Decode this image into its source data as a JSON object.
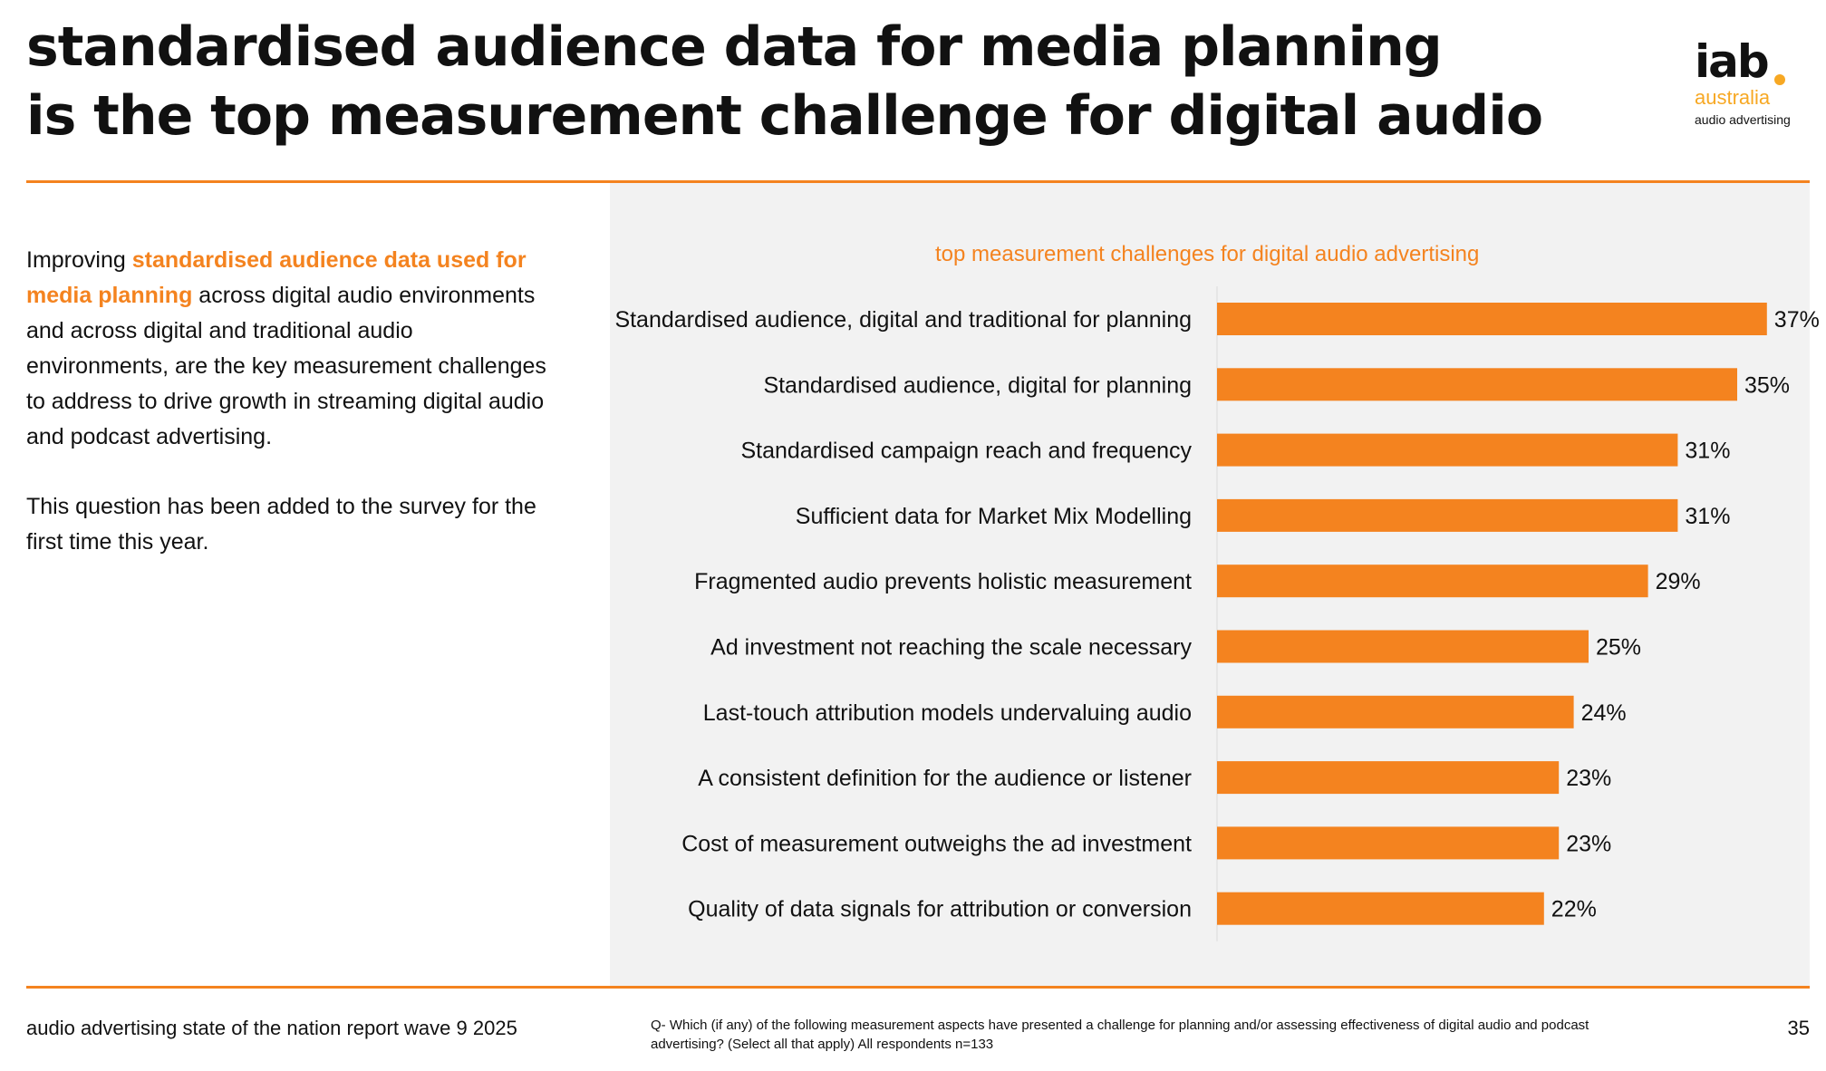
{
  "header": {
    "title_line1": "standardised audience data for media planning",
    "title_line2": "is the top measurement challenge for digital audio"
  },
  "logo": {
    "brand": "iab",
    "country": "australia",
    "sub": "audio advertising",
    "accent_color": "#f7a823"
  },
  "intro": {
    "p1_prefix": "Improving ",
    "p1_highlight": "standardised audience data used for media planning",
    "p1_suffix": " across digital audio environments and across digital and traditional audio environments, are the key measurement challenges to address to drive growth in streaming digital audio and podcast advertising.",
    "p2": "This question has been added to the survey for the first time this year."
  },
  "colors": {
    "accent": "#f4831f",
    "panel_bg": "#f2f2f2"
  },
  "chart_data": {
    "type": "bar",
    "orientation": "horizontal",
    "title": "top measurement challenges for digital audio advertising",
    "categories": [
      "Standardised audience, digital and traditional for planning",
      "Standardised audience, digital for planning",
      "Standardised campaign reach and frequency",
      "Sufficient data for Market Mix Modelling",
      "Fragmented audio prevents holistic measurement",
      "Ad investment not reaching the scale necessary",
      "Last-touch attribution models undervaluing audio",
      "A consistent definition for the audience or listener",
      "Cost of measurement outweighs the ad investment",
      "Quality of data signals for attribution or conversion"
    ],
    "values": [
      37,
      35,
      31,
      31,
      29,
      25,
      24,
      23,
      23,
      22
    ],
    "data_labels": [
      "37%",
      "35%",
      "31%",
      "31%",
      "29%",
      "25%",
      "24%",
      "23%",
      "23%",
      "22%"
    ],
    "unit": "%",
    "bar_color": "#f4831f",
    "grid": false,
    "legend": "none"
  },
  "footer": {
    "report": "audio advertising state of the nation report wave 9 2025",
    "question": "Q- Which (if any) of the following measurement aspects have presented a challenge for planning and/or assessing effectiveness of digital audio and podcast advertising? (Select all that apply) All respondents n=133",
    "page": "35"
  }
}
